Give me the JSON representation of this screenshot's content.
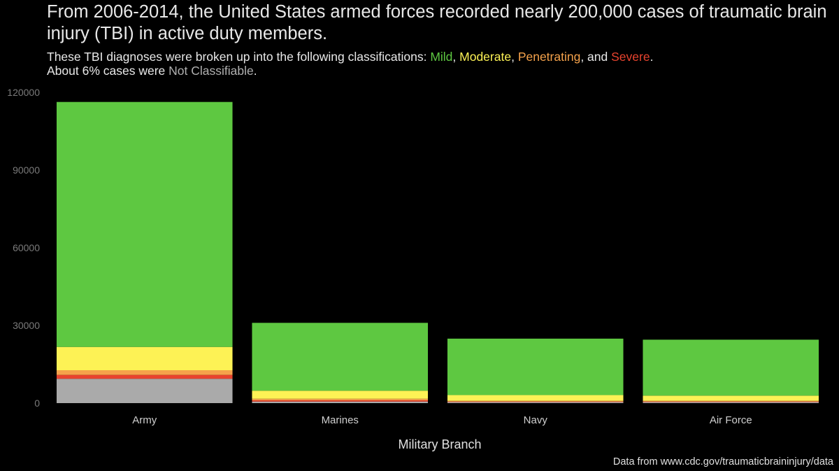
{
  "title": "From 2006-2014, the United States armed forces recorded nearly 200,000 cases of traumatic brain injury (TBI) in active duty members.",
  "subtitle": {
    "line1_prefix": "These TBI diagnoses were broken up into the following classifications: ",
    "mild": "Mild",
    "sep1": ", ",
    "moderate": "Moderate",
    "sep2": ", ",
    "penetrating": "Penetrating",
    "sep3": ", and ",
    "severe": "Severe",
    "line1_suffix": ".",
    "line2_prefix": "About 6% cases were ",
    "not_classifiable": "Not Classifiable",
    "line2_suffix": "."
  },
  "caption": "Data from www.cdc.gov/traumaticbraininjury/data",
  "chart_data": {
    "type": "bar",
    "stacked": true,
    "categories": [
      "Army",
      "Marines",
      "Navy",
      "Air Force"
    ],
    "xlabel": "Military Branch",
    "ylabel": "",
    "ylim": [
      0,
      120000
    ],
    "yticks": [
      0,
      30000,
      60000,
      90000,
      120000
    ],
    "yticklabels": [
      "0",
      "30000",
      "60000",
      "90000",
      "120000"
    ],
    "grid": false,
    "legend": "none",
    "series": [
      {
        "name": "Not Classifiable",
        "color": "#aaaaaa",
        "values": [
          9400,
          600,
          400,
          400
        ]
      },
      {
        "name": "Severe",
        "color": "#e8432e",
        "values": [
          1500,
          500,
          200,
          200
        ]
      },
      {
        "name": "Penetrating",
        "color": "#f5a24b",
        "values": [
          1800,
          600,
          300,
          300
        ]
      },
      {
        "name": "Moderate",
        "color": "#fdf255",
        "values": [
          9000,
          3100,
          2200,
          2000
        ]
      },
      {
        "name": "Mild",
        "color": "#5ec841",
        "values": [
          94600,
          26200,
          21800,
          21600
        ]
      }
    ]
  }
}
